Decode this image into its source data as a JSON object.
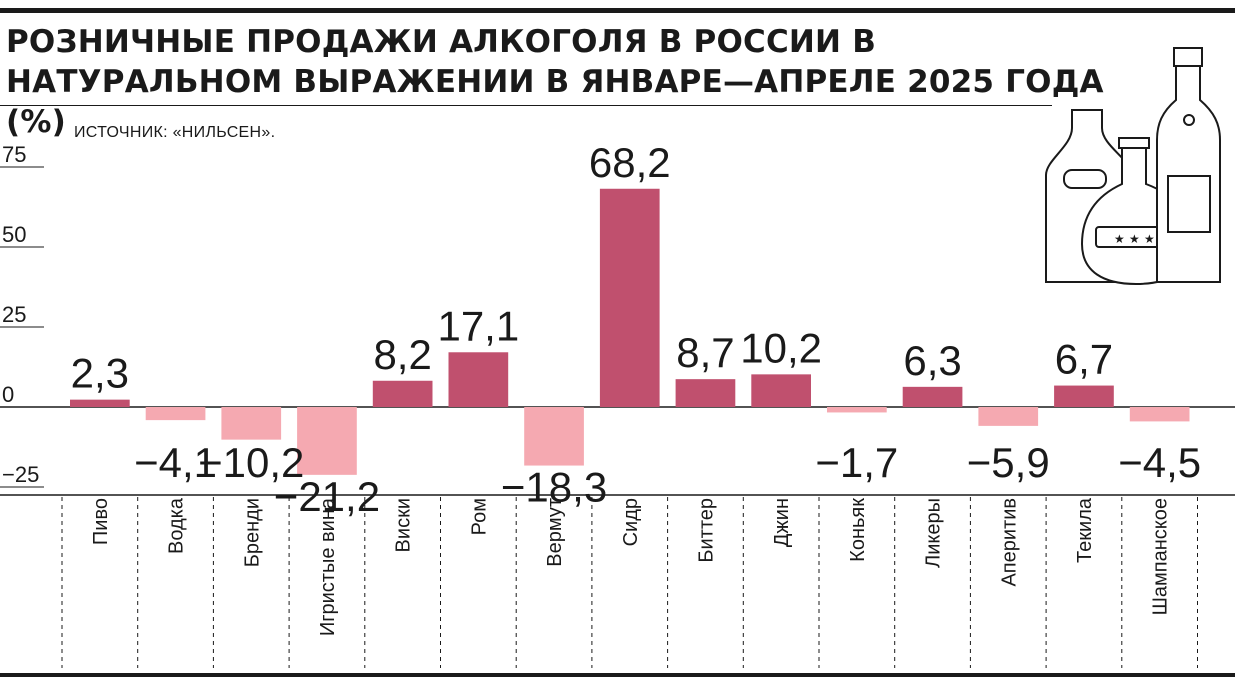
{
  "title": "РОЗНИЧНЫЕ ПРОДАЖИ АЛКОГОЛЯ В РОССИИ В НАТУРАЛЬНОМ ВЫРАЖЕНИИ В ЯНВАРЕ—АПРЕЛЕ 2025 ГОДА (%)",
  "source": "ИСТОЧНИК: «НИЛЬСЕН».",
  "colors": {
    "positive": "#c0506e",
    "negative": "#f5a9b1",
    "ink": "#1a1a1a",
    "icon_fill": "#ffffff"
  },
  "illustration": {
    "icon": "alcohol-bottles-icon"
  },
  "chart_data": {
    "type": "bar",
    "title": "РОЗНИЧНЫЕ ПРОДАЖИ АЛКОГОЛЯ В РОССИИ В НАТУРАЛЬНОМ ВЫРАЖЕНИИ В ЯНВАРЕ—АПРЕЛЕ 2025 ГОДА (%)",
    "categories": [
      "Пиво",
      "Водка",
      "Бренди",
      "Игристые вина",
      "Виски",
      "Ром",
      "Вермут",
      "Сидр",
      "Биттер",
      "Джин",
      "Коньяк",
      "Ликеры",
      "Аперитив",
      "Текила",
      "Шампанское"
    ],
    "values": [
      2.3,
      -4.1,
      -10.2,
      -21.2,
      8.2,
      17.1,
      -18.3,
      68.2,
      8.7,
      10.2,
      -1.7,
      6.3,
      -5.9,
      6.7,
      -4.5
    ],
    "value_labels": [
      "2,3",
      "−4,1",
      "−10,2",
      "−21,2",
      "8,2",
      "17,1",
      "−18,3",
      "68,2",
      "8,7",
      "10,2",
      "−1,7",
      "6,3",
      "−5,9",
      "6,7",
      "−4,5"
    ],
    "y_ticks": [
      75,
      50,
      25,
      0,
      -25
    ],
    "y_tick_labels": [
      "75",
      "50",
      "25",
      "0",
      "−25"
    ],
    "ylim": [
      -25,
      75
    ],
    "grid": false,
    "legend": "none"
  }
}
